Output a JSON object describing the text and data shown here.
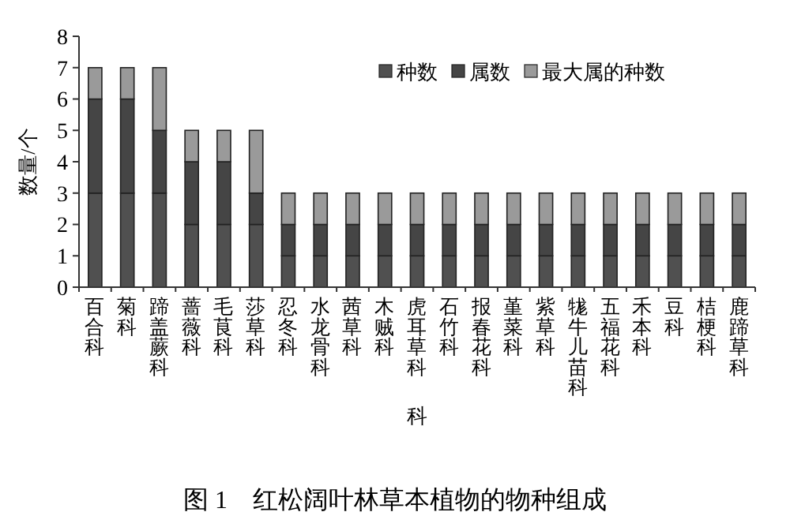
{
  "chart_data": {
    "type": "bar",
    "stacked": true,
    "title": "图 1　红松阔叶林草本植物的物种组成",
    "xlabel": "科",
    "ylabel": "数量/个",
    "categories": [
      "百合科",
      "菊科",
      "蹄盖蕨科",
      "蔷薇科",
      "毛茛科",
      "莎草科",
      "忍冬科",
      "水龙骨科",
      "茜草科",
      "木贼科",
      "虎耳草科",
      "石竹科",
      "报春花科",
      "堇菜科",
      "紫草科",
      "牻牛儿苗科",
      "五福花科",
      "禾本科",
      "豆科",
      "桔梗科",
      "鹿蹄草科"
    ],
    "series": [
      {
        "name": "种数",
        "color": "#505050",
        "values": [
          3,
          3,
          3,
          2,
          2,
          2,
          1,
          1,
          1,
          1,
          1,
          1,
          1,
          1,
          1,
          1,
          1,
          1,
          1,
          1,
          1
        ]
      },
      {
        "name": "属数",
        "color": "#454545",
        "values": [
          3,
          3,
          2,
          2,
          2,
          1,
          1,
          1,
          1,
          1,
          1,
          1,
          1,
          1,
          1,
          1,
          1,
          1,
          1,
          1,
          1
        ]
      },
      {
        "name": "最大属的种数",
        "color": "#9a9a9a",
        "values": [
          1,
          1,
          2,
          1,
          1,
          2,
          1,
          1,
          1,
          1,
          1,
          1,
          1,
          1,
          1,
          1,
          1,
          1,
          1,
          1,
          1
        ]
      }
    ],
    "ylim": [
      0,
      8
    ],
    "yticks": [
      0,
      1,
      2,
      3,
      4,
      5,
      6,
      7,
      8
    ],
    "grid": false,
    "legend": "top right"
  }
}
